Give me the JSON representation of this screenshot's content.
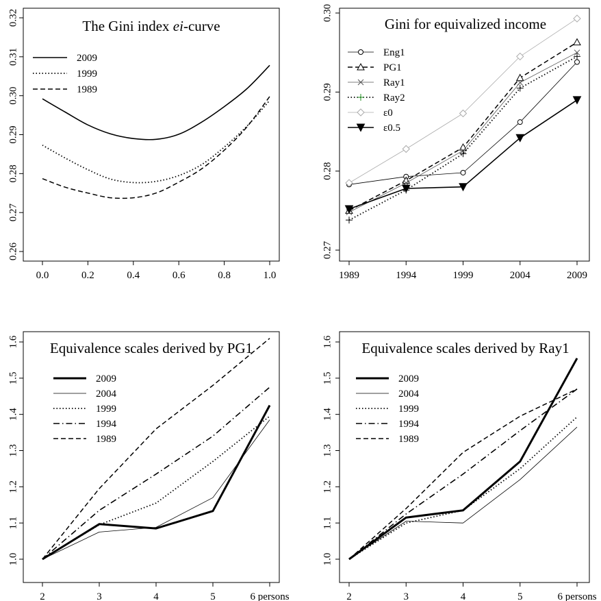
{
  "chart_data": [
    {
      "type": "line",
      "title": "The Gini index ",
      "title_italic": "ei",
      "title_suffix": "-curve",
      "xlabel": "",
      "ylabel": "",
      "xlim": [
        0,
        1
      ],
      "ylim": [
        0.26,
        0.32
      ],
      "x_ticks": [
        0.0,
        0.2,
        0.4,
        0.6,
        0.8,
        1.0
      ],
      "x_tick_labels": [
        "0.0",
        "0.2",
        "0.4",
        "0.6",
        "0.8",
        "1.0"
      ],
      "y_ticks": [
        0.26,
        0.27,
        0.28,
        0.29,
        0.3,
        0.31,
        0.32
      ],
      "y_tick_labels": [
        "0.26",
        "0.27",
        "0.28",
        "0.29",
        "0.30",
        "0.31",
        "0.32"
      ],
      "legend_position": "top-left",
      "x": [
        0.0,
        0.1,
        0.2,
        0.3,
        0.4,
        0.5,
        0.6,
        0.7,
        0.8,
        0.9,
        1.0
      ],
      "series": [
        {
          "name": "2009",
          "style": "solid",
          "width": 1.6,
          "color": "#000000",
          "values": [
            0.2992,
            0.2958,
            0.2925,
            0.2902,
            0.289,
            0.2888,
            0.2901,
            0.2932,
            0.2972,
            0.3018,
            0.3078
          ]
        },
        {
          "name": "1999",
          "style": "dotted",
          "width": 1.8,
          "color": "#000000",
          "values": [
            0.2873,
            0.284,
            0.281,
            0.2786,
            0.2777,
            0.278,
            0.2795,
            0.2823,
            0.2868,
            0.2922,
            0.2988
          ]
        },
        {
          "name": "1989",
          "style": "dashed",
          "width": 1.5,
          "color": "#000000",
          "values": [
            0.2787,
            0.2765,
            0.275,
            0.2738,
            0.2738,
            0.275,
            0.2778,
            0.2812,
            0.286,
            0.292,
            0.2998
          ]
        }
      ]
    },
    {
      "type": "line",
      "title": "Gini for equivalized income",
      "xlabel": "",
      "ylabel": "",
      "ylim": [
        0.27,
        0.3
      ],
      "categories": [
        "1989",
        "1994",
        "1999",
        "2004",
        "2009"
      ],
      "y_ticks": [
        0.27,
        0.28,
        0.29,
        0.3
      ],
      "y_tick_labels": [
        "0.27",
        "0.28",
        "0.29",
        "0.30"
      ],
      "legend_position": "top-left",
      "series": [
        {
          "name": "Eng1",
          "style": "solid",
          "width": 0.8,
          "color": "#000000",
          "marker": "circle",
          "values": [
            0.2783,
            0.2793,
            0.2798,
            0.2862,
            0.2938
          ]
        },
        {
          "name": "PG1",
          "style": "dashed",
          "width": 1.5,
          "color": "#000000",
          "marker": "triangle",
          "values": [
            0.275,
            0.2788,
            0.283,
            0.2918,
            0.2963
          ]
        },
        {
          "name": "Ray1",
          "style": "solid",
          "width": 0.8,
          "color": "#555555",
          "marker": "x",
          "values": [
            0.2748,
            0.2785,
            0.2826,
            0.2912,
            0.295
          ]
        },
        {
          "name": "Ray2",
          "style": "dotted",
          "width": 1.8,
          "color": "#000000",
          "marker": "plus",
          "values": [
            0.2738,
            0.2776,
            0.2822,
            0.2905,
            0.2945
          ]
        },
        {
          "name": "ε0",
          "style": "solid",
          "width": 0.8,
          "color": "#aaaaaa",
          "marker": "diamond",
          "values": [
            0.2785,
            0.2828,
            0.2873,
            0.2945,
            0.2993
          ]
        },
        {
          "name": "ε0.5",
          "style": "solid",
          "width": 1.6,
          "color": "#000000",
          "marker": "triangle-down",
          "values": [
            0.2752,
            0.2778,
            0.278,
            0.2842,
            0.289
          ]
        }
      ]
    },
    {
      "type": "line",
      "title": "Equivalence scales derived by PG1",
      "xlabel": "",
      "ylabel": "",
      "ylim": [
        1.0,
        1.6
      ],
      "categories": [
        "2",
        "3",
        "4",
        "5",
        "6 persons"
      ],
      "y_ticks": [
        1.0,
        1.1,
        1.2,
        1.3,
        1.4,
        1.5,
        1.6
      ],
      "y_tick_labels": [
        "1.0",
        "1.1",
        "1.2",
        "1.3",
        "1.4",
        "1.5",
        "1.6"
      ],
      "legend_position": "top-left",
      "series": [
        {
          "name": "2009",
          "style": "solid",
          "width": 3,
          "color": "#000000",
          "values": [
            1.0,
            1.097,
            1.085,
            1.133,
            1.425
          ]
        },
        {
          "name": "2004",
          "style": "solid",
          "width": 0.8,
          "color": "#000000",
          "values": [
            1.0,
            1.075,
            1.088,
            1.17,
            1.385
          ]
        },
        {
          "name": "1999",
          "style": "dotted",
          "width": 1.8,
          "color": "#000000",
          "values": [
            1.0,
            1.095,
            1.155,
            1.27,
            1.395
          ]
        },
        {
          "name": "1994",
          "style": "dashdot",
          "width": 1.6,
          "color": "#000000",
          "values": [
            1.0,
            1.135,
            1.235,
            1.34,
            1.475
          ]
        },
        {
          "name": "1989",
          "style": "dashed",
          "width": 1.5,
          "color": "#000000",
          "values": [
            1.0,
            1.195,
            1.36,
            1.48,
            1.61
          ]
        }
      ]
    },
    {
      "type": "line",
      "title": "Equivalence scales derived by Ray1",
      "xlabel": "",
      "ylabel": "",
      "ylim": [
        1.0,
        1.6
      ],
      "categories": [
        "2",
        "3",
        "4",
        "5",
        "6 persons"
      ],
      "y_ticks": [
        1.0,
        1.1,
        1.2,
        1.3,
        1.4,
        1.5,
        1.6
      ],
      "y_tick_labels": [
        "1.0",
        "1.1",
        "1.2",
        "1.3",
        "1.4",
        "1.5",
        "1.6"
      ],
      "legend_position": "top-left",
      "series": [
        {
          "name": "2009",
          "style": "solid",
          "width": 3,
          "color": "#000000",
          "values": [
            1.0,
            1.115,
            1.135,
            1.27,
            1.555
          ]
        },
        {
          "name": "2004",
          "style": "solid",
          "width": 0.8,
          "color": "#000000",
          "values": [
            1.0,
            1.105,
            1.1,
            1.22,
            1.365
          ]
        },
        {
          "name": "1999",
          "style": "dotted",
          "width": 1.8,
          "color": "#000000",
          "values": [
            1.0,
            1.1,
            1.135,
            1.25,
            1.393
          ]
        },
        {
          "name": "1994",
          "style": "dashdot",
          "width": 1.6,
          "color": "#000000",
          "values": [
            1.0,
            1.125,
            1.235,
            1.355,
            1.47
          ]
        },
        {
          "name": "1989",
          "style": "dashed",
          "width": 1.5,
          "color": "#000000",
          "values": [
            1.0,
            1.14,
            1.295,
            1.395,
            1.47
          ]
        }
      ]
    }
  ]
}
